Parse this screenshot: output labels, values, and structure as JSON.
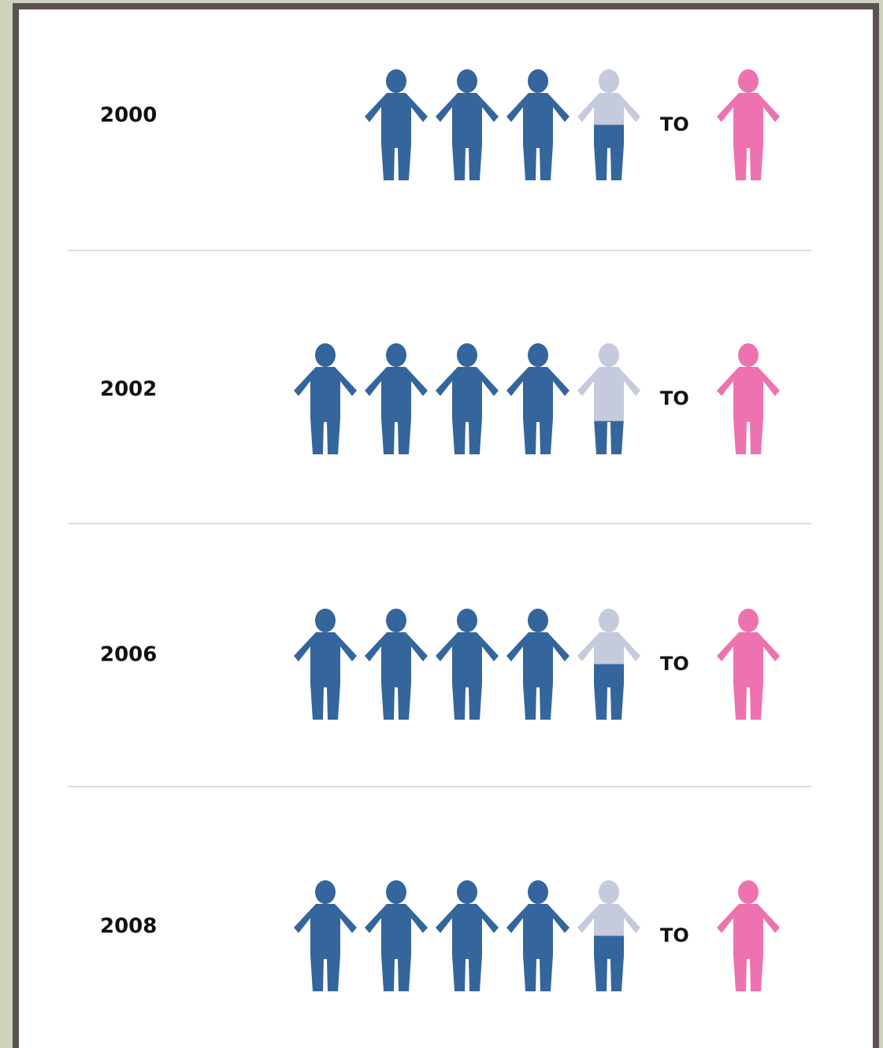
{
  "chart_data": {
    "type": "pictogram",
    "categories": [
      "2000",
      "2002",
      "2006",
      "2008"
    ],
    "values": [
      3.5,
      4.3,
      4.5,
      4.5
    ],
    "connector": "TO",
    "series_colors": {
      "male": "#34659c",
      "empty": "#c5cadc",
      "female": "#ee72b0"
    }
  }
}
